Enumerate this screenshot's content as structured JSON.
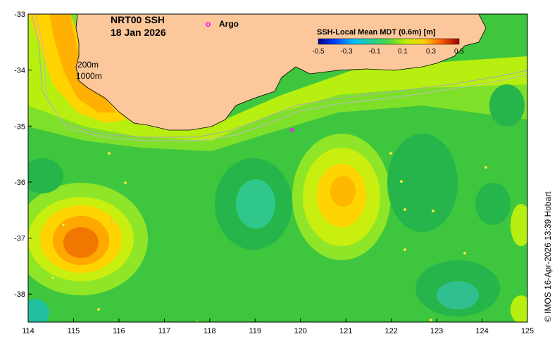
{
  "map": {
    "title_line1": "NRT00 SSH",
    "title_line2": "18 Jan 2026",
    "argo_symbol": "o",
    "argo_label": "Argo",
    "contour_label_200": "200m",
    "contour_label_1000": "1000m",
    "credit": "© IMOS 16-Apr-2026 13:39 Hobart"
  },
  "axes": {
    "x_ticks": [
      "114",
      "115",
      "116",
      "117",
      "118",
      "119",
      "120",
      "121",
      "122",
      "123",
      "124",
      "125"
    ],
    "y_ticks": [
      "-33",
      "-34",
      "-35",
      "-36",
      "-37",
      "-38"
    ],
    "xlim": [
      114,
      125
    ],
    "ylim": [
      -38.5,
      -33
    ]
  },
  "colorbar": {
    "title": "SSH-Local Mean MDT (0.6m) [m]",
    "ticks": [
      "-0.5",
      "-0.3",
      "-0.1",
      "0.1",
      "0.3",
      "0.5"
    ],
    "range": [
      -0.5,
      0.5
    ]
  },
  "colors": {
    "land": "#fcc79a",
    "argo": "#ff00ff",
    "contour": "#aaaaaa"
  }
}
